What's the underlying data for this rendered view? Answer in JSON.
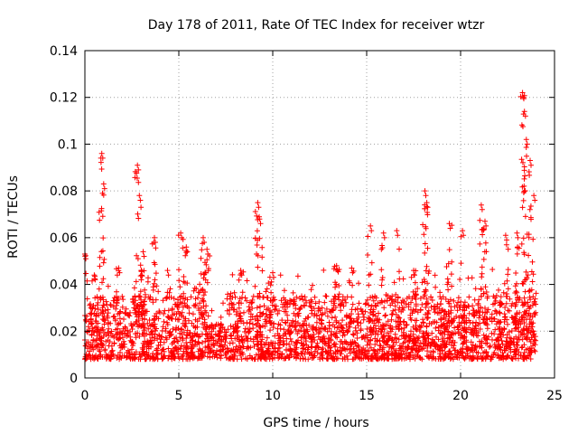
{
  "chart_data": {
    "type": "scatter",
    "title": "Day 178 of 2011, Rate Of TEC Index for receiver wtzr",
    "xlabel": "GPS time / hours",
    "ylabel": "ROTI / TECUs",
    "xlim": [
      0,
      25
    ],
    "ylim": [
      0,
      0.14
    ],
    "xticks": [
      "0",
      "5",
      "10",
      "15",
      "20",
      "25"
    ],
    "yticks": [
      "0",
      "0.02",
      "0.04",
      "0.06",
      "0.08",
      "0.1",
      "0.12",
      "0.14"
    ],
    "grid": true,
    "marker": "+",
    "color": "#ff0000",
    "series": [
      {
        "name": "ROTI",
        "x_range": [
          0,
          24
        ],
        "typical_range": [
          0.008,
          0.035
        ],
        "peaks": [
          {
            "x": 0.0,
            "y": 0.053
          },
          {
            "x": 0.5,
            "y": 0.044
          },
          {
            "x": 0.9,
            "y": 0.096
          },
          {
            "x": 1.0,
            "y": 0.083
          },
          {
            "x": 1.8,
            "y": 0.047
          },
          {
            "x": 2.8,
            "y": 0.091
          },
          {
            "x": 2.9,
            "y": 0.078
          },
          {
            "x": 3.1,
            "y": 0.054
          },
          {
            "x": 3.7,
            "y": 0.06
          },
          {
            "x": 4.4,
            "y": 0.046
          },
          {
            "x": 5.1,
            "y": 0.062
          },
          {
            "x": 5.4,
            "y": 0.056
          },
          {
            "x": 6.3,
            "y": 0.06
          },
          {
            "x": 6.5,
            "y": 0.055
          },
          {
            "x": 8.3,
            "y": 0.046
          },
          {
            "x": 9.2,
            "y": 0.075
          },
          {
            "x": 9.3,
            "y": 0.068
          },
          {
            "x": 10.0,
            "y": 0.045
          },
          {
            "x": 13.4,
            "y": 0.048
          },
          {
            "x": 14.2,
            "y": 0.047
          },
          {
            "x": 15.2,
            "y": 0.065
          },
          {
            "x": 15.9,
            "y": 0.062
          },
          {
            "x": 16.6,
            "y": 0.063
          },
          {
            "x": 17.5,
            "y": 0.046
          },
          {
            "x": 18.1,
            "y": 0.08
          },
          {
            "x": 18.2,
            "y": 0.075
          },
          {
            "x": 19.4,
            "y": 0.066
          },
          {
            "x": 20.1,
            "y": 0.063
          },
          {
            "x": 21.1,
            "y": 0.074
          },
          {
            "x": 21.3,
            "y": 0.067
          },
          {
            "x": 22.4,
            "y": 0.061
          },
          {
            "x": 23.0,
            "y": 0.062
          },
          {
            "x": 23.3,
            "y": 0.122
          },
          {
            "x": 23.4,
            "y": 0.114
          },
          {
            "x": 23.5,
            "y": 0.102
          },
          {
            "x": 23.7,
            "y": 0.093
          },
          {
            "x": 23.9,
            "y": 0.078
          }
        ]
      }
    ]
  }
}
